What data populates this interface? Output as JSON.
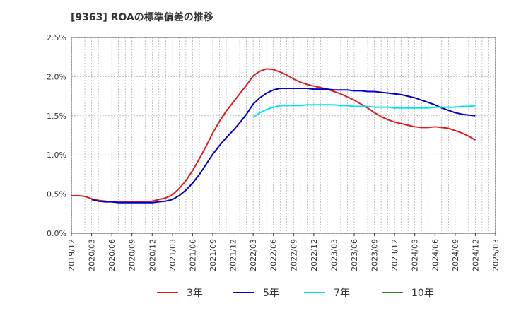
{
  "chart_data": {
    "type": "line",
    "title": "[9363]  ROAの標準偏差の推移",
    "xlabel": "",
    "ylabel": "",
    "ylim": [
      0,
      2.5
    ],
    "yticks": [
      "0.0%",
      "0.5%",
      "1.0%",
      "1.5%",
      "2.0%",
      "2.5%"
    ],
    "x_ticks": [
      "2019/12",
      "2020/03",
      "2020/06",
      "2020/09",
      "2020/12",
      "2021/03",
      "2021/06",
      "2021/09",
      "2021/12",
      "2022/03",
      "2022/06",
      "2022/09",
      "2022/12",
      "2023/03",
      "2023/06",
      "2023/09",
      "2023/12",
      "2024/03",
      "2024/06",
      "2024/09",
      "2024/12",
      "2025/03"
    ],
    "grid": true,
    "legend_position": "bottom",
    "series": [
      {
        "name": "3年",
        "color": "#e41a1c",
        "points": [
          [
            "2019/12",
            0.48
          ],
          [
            "2020/01",
            0.48
          ],
          [
            "2020/02",
            0.47
          ],
          [
            "2020/03",
            0.44
          ],
          [
            "2020/04",
            0.42
          ],
          [
            "2020/05",
            0.41
          ],
          [
            "2020/06",
            0.4
          ],
          [
            "2020/07",
            0.4
          ],
          [
            "2020/08",
            0.4
          ],
          [
            "2020/09",
            0.4
          ],
          [
            "2020/10",
            0.4
          ],
          [
            "2020/11",
            0.4
          ],
          [
            "2020/12",
            0.41
          ],
          [
            "2021/01",
            0.43
          ],
          [
            "2021/02",
            0.45
          ],
          [
            "2021/03",
            0.49
          ],
          [
            "2021/04",
            0.57
          ],
          [
            "2021/05",
            0.67
          ],
          [
            "2021/06",
            0.8
          ],
          [
            "2021/07",
            0.95
          ],
          [
            "2021/08",
            1.11
          ],
          [
            "2021/09",
            1.28
          ],
          [
            "2021/10",
            1.43
          ],
          [
            "2021/11",
            1.56
          ],
          [
            "2021/12",
            1.67
          ],
          [
            "2022/01",
            1.78
          ],
          [
            "2022/02",
            1.89
          ],
          [
            "2022/03",
            2.01
          ],
          [
            "2022/04",
            2.07
          ],
          [
            "2022/05",
            2.1
          ],
          [
            "2022/06",
            2.09
          ],
          [
            "2022/07",
            2.06
          ],
          [
            "2022/08",
            2.02
          ],
          [
            "2022/09",
            1.97
          ],
          [
            "2022/10",
            1.93
          ],
          [
            "2022/11",
            1.9
          ],
          [
            "2022/12",
            1.88
          ],
          [
            "2023/01",
            1.86
          ],
          [
            "2023/02",
            1.84
          ],
          [
            "2023/03",
            1.81
          ],
          [
            "2023/04",
            1.78
          ],
          [
            "2023/05",
            1.74
          ],
          [
            "2023/06",
            1.7
          ],
          [
            "2023/07",
            1.65
          ],
          [
            "2023/08",
            1.6
          ],
          [
            "2023/09",
            1.54
          ],
          [
            "2023/10",
            1.49
          ],
          [
            "2023/11",
            1.45
          ],
          [
            "2023/12",
            1.42
          ],
          [
            "2024/01",
            1.4
          ],
          [
            "2024/02",
            1.38
          ],
          [
            "2024/03",
            1.36
          ],
          [
            "2024/04",
            1.35
          ],
          [
            "2024/05",
            1.35
          ],
          [
            "2024/06",
            1.36
          ],
          [
            "2024/07",
            1.35
          ],
          [
            "2024/08",
            1.34
          ],
          [
            "2024/09",
            1.31
          ],
          [
            "2024/10",
            1.28
          ],
          [
            "2024/11",
            1.24
          ],
          [
            "2024/12",
            1.19
          ]
        ]
      },
      {
        "name": "5年",
        "color": "#0000cc",
        "points": [
          [
            "2020/03",
            0.43
          ],
          [
            "2020/04",
            0.41
          ],
          [
            "2020/05",
            0.4
          ],
          [
            "2020/06",
            0.4
          ],
          [
            "2020/07",
            0.39
          ],
          [
            "2020/08",
            0.39
          ],
          [
            "2020/09",
            0.39
          ],
          [
            "2020/10",
            0.39
          ],
          [
            "2020/11",
            0.39
          ],
          [
            "2020/12",
            0.39
          ],
          [
            "2021/01",
            0.4
          ],
          [
            "2021/02",
            0.41
          ],
          [
            "2021/03",
            0.43
          ],
          [
            "2021/04",
            0.48
          ],
          [
            "2021/05",
            0.55
          ],
          [
            "2021/06",
            0.64
          ],
          [
            "2021/07",
            0.75
          ],
          [
            "2021/08",
            0.88
          ],
          [
            "2021/09",
            1.01
          ],
          [
            "2021/10",
            1.12
          ],
          [
            "2021/11",
            1.22
          ],
          [
            "2021/12",
            1.31
          ],
          [
            "2022/01",
            1.41
          ],
          [
            "2022/02",
            1.52
          ],
          [
            "2022/03",
            1.65
          ],
          [
            "2022/04",
            1.73
          ],
          [
            "2022/05",
            1.79
          ],
          [
            "2022/06",
            1.83
          ],
          [
            "2022/07",
            1.85
          ],
          [
            "2022/08",
            1.85
          ],
          [
            "2022/09",
            1.85
          ],
          [
            "2022/10",
            1.85
          ],
          [
            "2022/11",
            1.85
          ],
          [
            "2022/12",
            1.84
          ],
          [
            "2023/01",
            1.84
          ],
          [
            "2023/02",
            1.84
          ],
          [
            "2023/03",
            1.83
          ],
          [
            "2023/04",
            1.83
          ],
          [
            "2023/05",
            1.83
          ],
          [
            "2023/06",
            1.82
          ],
          [
            "2023/07",
            1.82
          ],
          [
            "2023/08",
            1.81
          ],
          [
            "2023/09",
            1.81
          ],
          [
            "2023/10",
            1.8
          ],
          [
            "2023/11",
            1.79
          ],
          [
            "2023/12",
            1.78
          ],
          [
            "2024/01",
            1.77
          ],
          [
            "2024/02",
            1.75
          ],
          [
            "2024/03",
            1.73
          ],
          [
            "2024/04",
            1.7
          ],
          [
            "2024/05",
            1.67
          ],
          [
            "2024/06",
            1.64
          ],
          [
            "2024/07",
            1.6
          ],
          [
            "2024/08",
            1.57
          ],
          [
            "2024/09",
            1.54
          ],
          [
            "2024/10",
            1.52
          ],
          [
            "2024/11",
            1.51
          ],
          [
            "2024/12",
            1.5
          ]
        ]
      },
      {
        "name": "7年",
        "color": "#00e5ee",
        "points": [
          [
            "2022/03",
            1.48
          ],
          [
            "2022/04",
            1.54
          ],
          [
            "2022/05",
            1.58
          ],
          [
            "2022/06",
            1.61
          ],
          [
            "2022/07",
            1.63
          ],
          [
            "2022/08",
            1.63
          ],
          [
            "2022/09",
            1.63
          ],
          [
            "2022/10",
            1.63
          ],
          [
            "2022/11",
            1.64
          ],
          [
            "2022/12",
            1.64
          ],
          [
            "2023/01",
            1.64
          ],
          [
            "2023/02",
            1.64
          ],
          [
            "2023/03",
            1.64
          ],
          [
            "2023/04",
            1.63
          ],
          [
            "2023/05",
            1.63
          ],
          [
            "2023/06",
            1.62
          ],
          [
            "2023/07",
            1.62
          ],
          [
            "2023/08",
            1.62
          ],
          [
            "2023/09",
            1.61
          ],
          [
            "2023/10",
            1.61
          ],
          [
            "2023/11",
            1.61
          ],
          [
            "2023/12",
            1.6
          ],
          [
            "2024/01",
            1.6
          ],
          [
            "2024/02",
            1.6
          ],
          [
            "2024/03",
            1.6
          ],
          [
            "2024/04",
            1.6
          ],
          [
            "2024/05",
            1.6
          ],
          [
            "2024/06",
            1.61
          ],
          [
            "2024/07",
            1.61
          ],
          [
            "2024/08",
            1.61
          ],
          [
            "2024/09",
            1.61
          ],
          [
            "2024/10",
            1.62
          ],
          [
            "2024/11",
            1.62
          ],
          [
            "2024/12",
            1.63
          ]
        ]
      },
      {
        "name": "10年",
        "color": "#228b22",
        "points": []
      }
    ]
  }
}
